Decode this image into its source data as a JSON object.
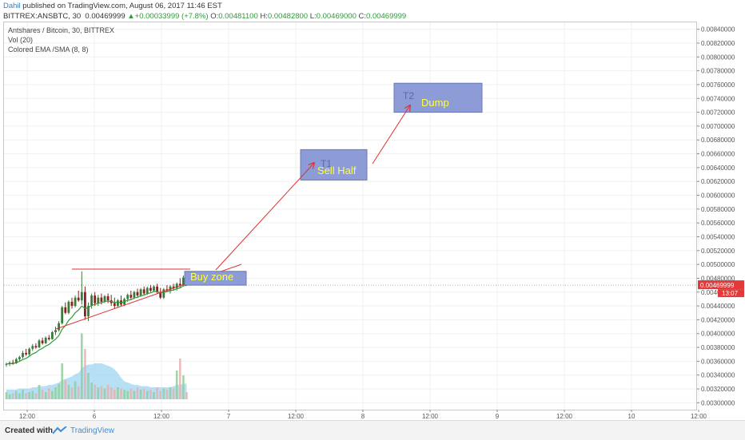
{
  "header": {
    "author": "Dahil",
    "published": " published on TradingView.com, August 06, 2017 11:46 EST",
    "symbol": "BITTREX:ANSBTC, 30",
    "last": "0.00469999",
    "change": "+0.00033999 (+7.8%)",
    "o_label": "O:",
    "o": "0.00481100",
    "h_label": "H:",
    "h": "0.00482800",
    "l_label": "L:",
    "l": "0.00469000",
    "c_label": "C:",
    "c": "0.00469999"
  },
  "legend": {
    "line1": "Antshares / Bitcoin, 30, BITTREX",
    "line2": "Vol (20)",
    "line3": "Colored EMA /SMA (8, 8)"
  },
  "footer": {
    "created": "Created with",
    "brand": "TradingView"
  },
  "colors": {
    "up": "#3a7a3a",
    "down": "#8a2020",
    "ema": "#2e9b3a",
    "trend": "#e03030",
    "vol_area": "#9fd6f2",
    "zone_fill": "#8d9bd6",
    "zone_stroke": "#6a78b8",
    "zone_text": "#ffff44",
    "price_tag": "#e23a3a"
  },
  "chart_data": {
    "type": "candlestick",
    "y_range": [
      0.0029,
      0.0085
    ],
    "y_ticks": [
      "0.00300000",
      "0.00320000",
      "0.00340000",
      "0.00360000",
      "0.00380000",
      "0.00400000",
      "0.00420000",
      "0.00440000",
      "0.00460000",
      "0.00480000",
      "0.00500000",
      "0.00520000",
      "0.00540000",
      "0.00560000",
      "0.00580000",
      "0.00600000",
      "0.00620000",
      "0.00640000",
      "0.00660000",
      "0.00680000",
      "0.00700000",
      "0.00720000",
      "0.00740000",
      "0.00760000",
      "0.00780000",
      "0.00800000",
      "0.00820000",
      "0.00840000"
    ],
    "x_ticks": [
      {
        "label": "12:00",
        "pos": 0.5
      },
      {
        "label": "6",
        "pos": 1.0
      },
      {
        "label": "12:00",
        "pos": 1.5
      },
      {
        "label": "7",
        "pos": 2.0
      },
      {
        "label": "12:00",
        "pos": 2.5
      },
      {
        "label": "8",
        "pos": 3.0
      },
      {
        "label": "12:00",
        "pos": 3.5
      },
      {
        "label": "9",
        "pos": 4.0
      },
      {
        "label": "12:00",
        "pos": 4.5
      },
      {
        "label": "10",
        "pos": 5.0
      },
      {
        "label": "12:00",
        "pos": 5.5
      }
    ],
    "current_price": "0.00469999",
    "countdown": "13:07",
    "annotations": [
      {
        "text": "Buy zone",
        "y_top": 0.0049,
        "y_bottom": 0.0047
      },
      {
        "text": "T1",
        "y_top": 0.00666,
        "y_bottom": 0.00622
      },
      {
        "text": "Sell Half",
        "y_top": 0.00666,
        "y_bottom": 0.00622
      },
      {
        "text": "T2",
        "y_top": 0.00762,
        "y_bottom": 0.0072
      },
      {
        "text": "Dump",
        "y_top": 0.00762,
        "y_bottom": 0.0072
      }
    ],
    "candles": [
      [
        0.00355,
        0.00358,
        0.00352,
        0.00356
      ],
      [
        0.00356,
        0.0036,
        0.00353,
        0.00358
      ],
      [
        0.00358,
        0.00362,
        0.00355,
        0.00357
      ],
      [
        0.00357,
        0.00365,
        0.00356,
        0.00363
      ],
      [
        0.00363,
        0.00368,
        0.0036,
        0.00366
      ],
      [
        0.00366,
        0.00375,
        0.00364,
        0.00372
      ],
      [
        0.00372,
        0.00378,
        0.00368,
        0.0037
      ],
      [
        0.0037,
        0.0038,
        0.00368,
        0.00378
      ],
      [
        0.00378,
        0.00385,
        0.00375,
        0.00382
      ],
      [
        0.00382,
        0.00386,
        0.00378,
        0.0038
      ],
      [
        0.0038,
        0.00392,
        0.00379,
        0.0039
      ],
      [
        0.0039,
        0.00394,
        0.00384,
        0.00386
      ],
      [
        0.00386,
        0.00396,
        0.00385,
        0.00394
      ],
      [
        0.00394,
        0.00398,
        0.0039,
        0.00392
      ],
      [
        0.00392,
        0.00404,
        0.00391,
        0.00402
      ],
      [
        0.00402,
        0.0041,
        0.00398,
        0.00405
      ],
      [
        0.00405,
        0.00418,
        0.00403,
        0.00415
      ],
      [
        0.00415,
        0.0044,
        0.00413,
        0.00438
      ],
      [
        0.00438,
        0.00445,
        0.00428,
        0.0043
      ],
      [
        0.0043,
        0.00448,
        0.00428,
        0.00446
      ],
      [
        0.00446,
        0.00452,
        0.00436,
        0.0044
      ],
      [
        0.0044,
        0.00455,
        0.00438,
        0.00452
      ],
      [
        0.00452,
        0.00462,
        0.00446,
        0.00448
      ],
      [
        0.00448,
        0.0049,
        0.00442,
        0.0046
      ],
      [
        0.0046,
        0.00468,
        0.0042,
        0.00425
      ],
      [
        0.00425,
        0.00445,
        0.00418,
        0.0044
      ],
      [
        0.0044,
        0.00458,
        0.00436,
        0.00455
      ],
      [
        0.00455,
        0.0046,
        0.0044,
        0.00444
      ],
      [
        0.00444,
        0.00456,
        0.0044,
        0.00452
      ],
      [
        0.00452,
        0.00458,
        0.00442,
        0.00446
      ],
      [
        0.00446,
        0.00456,
        0.00444,
        0.00454
      ],
      [
        0.00454,
        0.00458,
        0.00444,
        0.00448
      ],
      [
        0.00448,
        0.00456,
        0.0044,
        0.00444
      ],
      [
        0.00444,
        0.00452,
        0.00436,
        0.0044
      ],
      [
        0.0044,
        0.0045,
        0.00438,
        0.00448
      ],
      [
        0.00448,
        0.00455,
        0.0044,
        0.00442
      ],
      [
        0.00442,
        0.00452,
        0.0044,
        0.0045
      ],
      [
        0.0045,
        0.00458,
        0.00446,
        0.00456
      ],
      [
        0.00456,
        0.00462,
        0.0045,
        0.00452
      ],
      [
        0.00452,
        0.00462,
        0.0045,
        0.0046
      ],
      [
        0.0046,
        0.00465,
        0.00452,
        0.00455
      ],
      [
        0.00455,
        0.00466,
        0.00453,
        0.00464
      ],
      [
        0.00464,
        0.00468,
        0.00456,
        0.00458
      ],
      [
        0.00458,
        0.00468,
        0.00456,
        0.00466
      ],
      [
        0.00466,
        0.0047,
        0.0046,
        0.00462
      ],
      [
        0.00462,
        0.0047,
        0.0046,
        0.00468
      ],
      [
        0.00468,
        0.00472,
        0.00458,
        0.0046
      ],
      [
        0.0046,
        0.00466,
        0.0045,
        0.00452
      ],
      [
        0.00452,
        0.00466,
        0.0045,
        0.00464
      ],
      [
        0.00464,
        0.0047,
        0.0046,
        0.00462
      ],
      [
        0.00462,
        0.0047,
        0.00458,
        0.00468
      ],
      [
        0.00468,
        0.00472,
        0.00462,
        0.00466
      ],
      [
        0.00466,
        0.00474,
        0.00462,
        0.00472
      ],
      [
        0.00472,
        0.0048,
        0.00466,
        0.0047
      ],
      [
        0.0047,
        0.00484,
        0.00468,
        0.00481
      ],
      [
        0.00481,
        0.00483,
        0.00469,
        0.0047
      ]
    ],
    "volume": [
      0.06,
      0.04,
      0.05,
      0.07,
      0.05,
      0.08,
      0.05,
      0.06,
      0.07,
      0.05,
      0.12,
      0.08,
      0.06,
      0.09,
      0.07,
      0.1,
      0.13,
      0.3,
      0.16,
      0.12,
      0.1,
      0.15,
      0.11,
      0.55,
      0.42,
      0.22,
      0.14,
      0.12,
      0.1,
      0.11,
      0.09,
      0.12,
      0.1,
      0.08,
      0.1,
      0.09,
      0.08,
      0.07,
      0.09,
      0.07,
      0.1,
      0.08,
      0.09,
      0.07,
      0.08,
      0.06,
      0.1,
      0.07,
      0.09,
      0.08,
      0.1,
      0.09,
      0.24,
      0.34,
      0.2,
      0.06
    ],
    "vol_avg": [
      0.08,
      0.08,
      0.08,
      0.08,
      0.09,
      0.09,
      0.09,
      0.09,
      0.1,
      0.1,
      0.11,
      0.11,
      0.11,
      0.12,
      0.12,
      0.13,
      0.14,
      0.16,
      0.17,
      0.18,
      0.19,
      0.21,
      0.22,
      0.26,
      0.28,
      0.29,
      0.29,
      0.3,
      0.3,
      0.3,
      0.29,
      0.28,
      0.27,
      0.25,
      0.22,
      0.18,
      0.15,
      0.14,
      0.13,
      0.12,
      0.12,
      0.11,
      0.11,
      0.11,
      0.1,
      0.1,
      0.1,
      0.1,
      0.1,
      0.1,
      0.1,
      0.11,
      0.12,
      0.12,
      0.13,
      0.13
    ]
  }
}
